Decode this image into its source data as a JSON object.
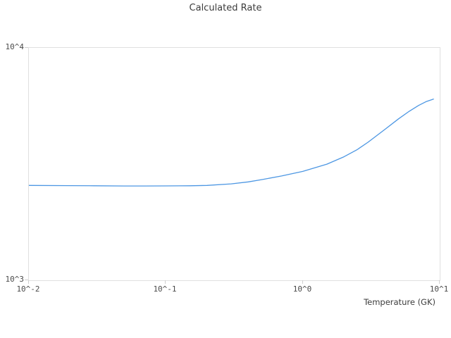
{
  "title": "Calculated Rate",
  "x_axis": {
    "label": "Temperature (GK)",
    "scale": "log",
    "tick_values": [
      0.01,
      0.1,
      1,
      10
    ],
    "tick_labels": [
      "10^-2",
      "10^-1",
      "10^0",
      "10^1"
    ]
  },
  "y_axis": {
    "label": "",
    "scale": "log",
    "tick_values": [
      1000,
      10000
    ],
    "tick_labels": [
      "10^3",
      "10^4"
    ]
  },
  "colors": {
    "line": "#4d97e3",
    "border": "#e0e0e0",
    "tick": "#cfcfcf",
    "tick_text": "#4a4a4a",
    "title_text": "#3b3b3b"
  },
  "chart_data": {
    "type": "line",
    "title": "Calculated Rate",
    "xlabel": "Temperature (GK)",
    "ylabel": "",
    "xscale": "log",
    "yscale": "log",
    "xlim": [
      0.01,
      10
    ],
    "ylim": [
      1000,
      10000
    ],
    "grid": false,
    "legend": false,
    "x_tick_labels": [
      "10^-2",
      "10^-1",
      "10^0",
      "10^1"
    ],
    "y_tick_labels": [
      "10^3",
      "10^4"
    ],
    "series": [
      {
        "name": "calculated-rate",
        "x": [
          0.01,
          0.02,
          0.03,
          0.05,
          0.07,
          0.1,
          0.15,
          0.2,
          0.3,
          0.4,
          0.5,
          0.7,
          1.0,
          1.5,
          2.0,
          2.5,
          3.0,
          4.0,
          5.0,
          6.0,
          7.0,
          8.0,
          9.0
        ],
        "values": [
          2560,
          2555,
          2550,
          2545,
          2545,
          2548,
          2550,
          2560,
          2600,
          2650,
          2710,
          2810,
          2940,
          3160,
          3400,
          3650,
          3930,
          4470,
          4950,
          5340,
          5650,
          5880,
          6020
        ]
      }
    ]
  }
}
